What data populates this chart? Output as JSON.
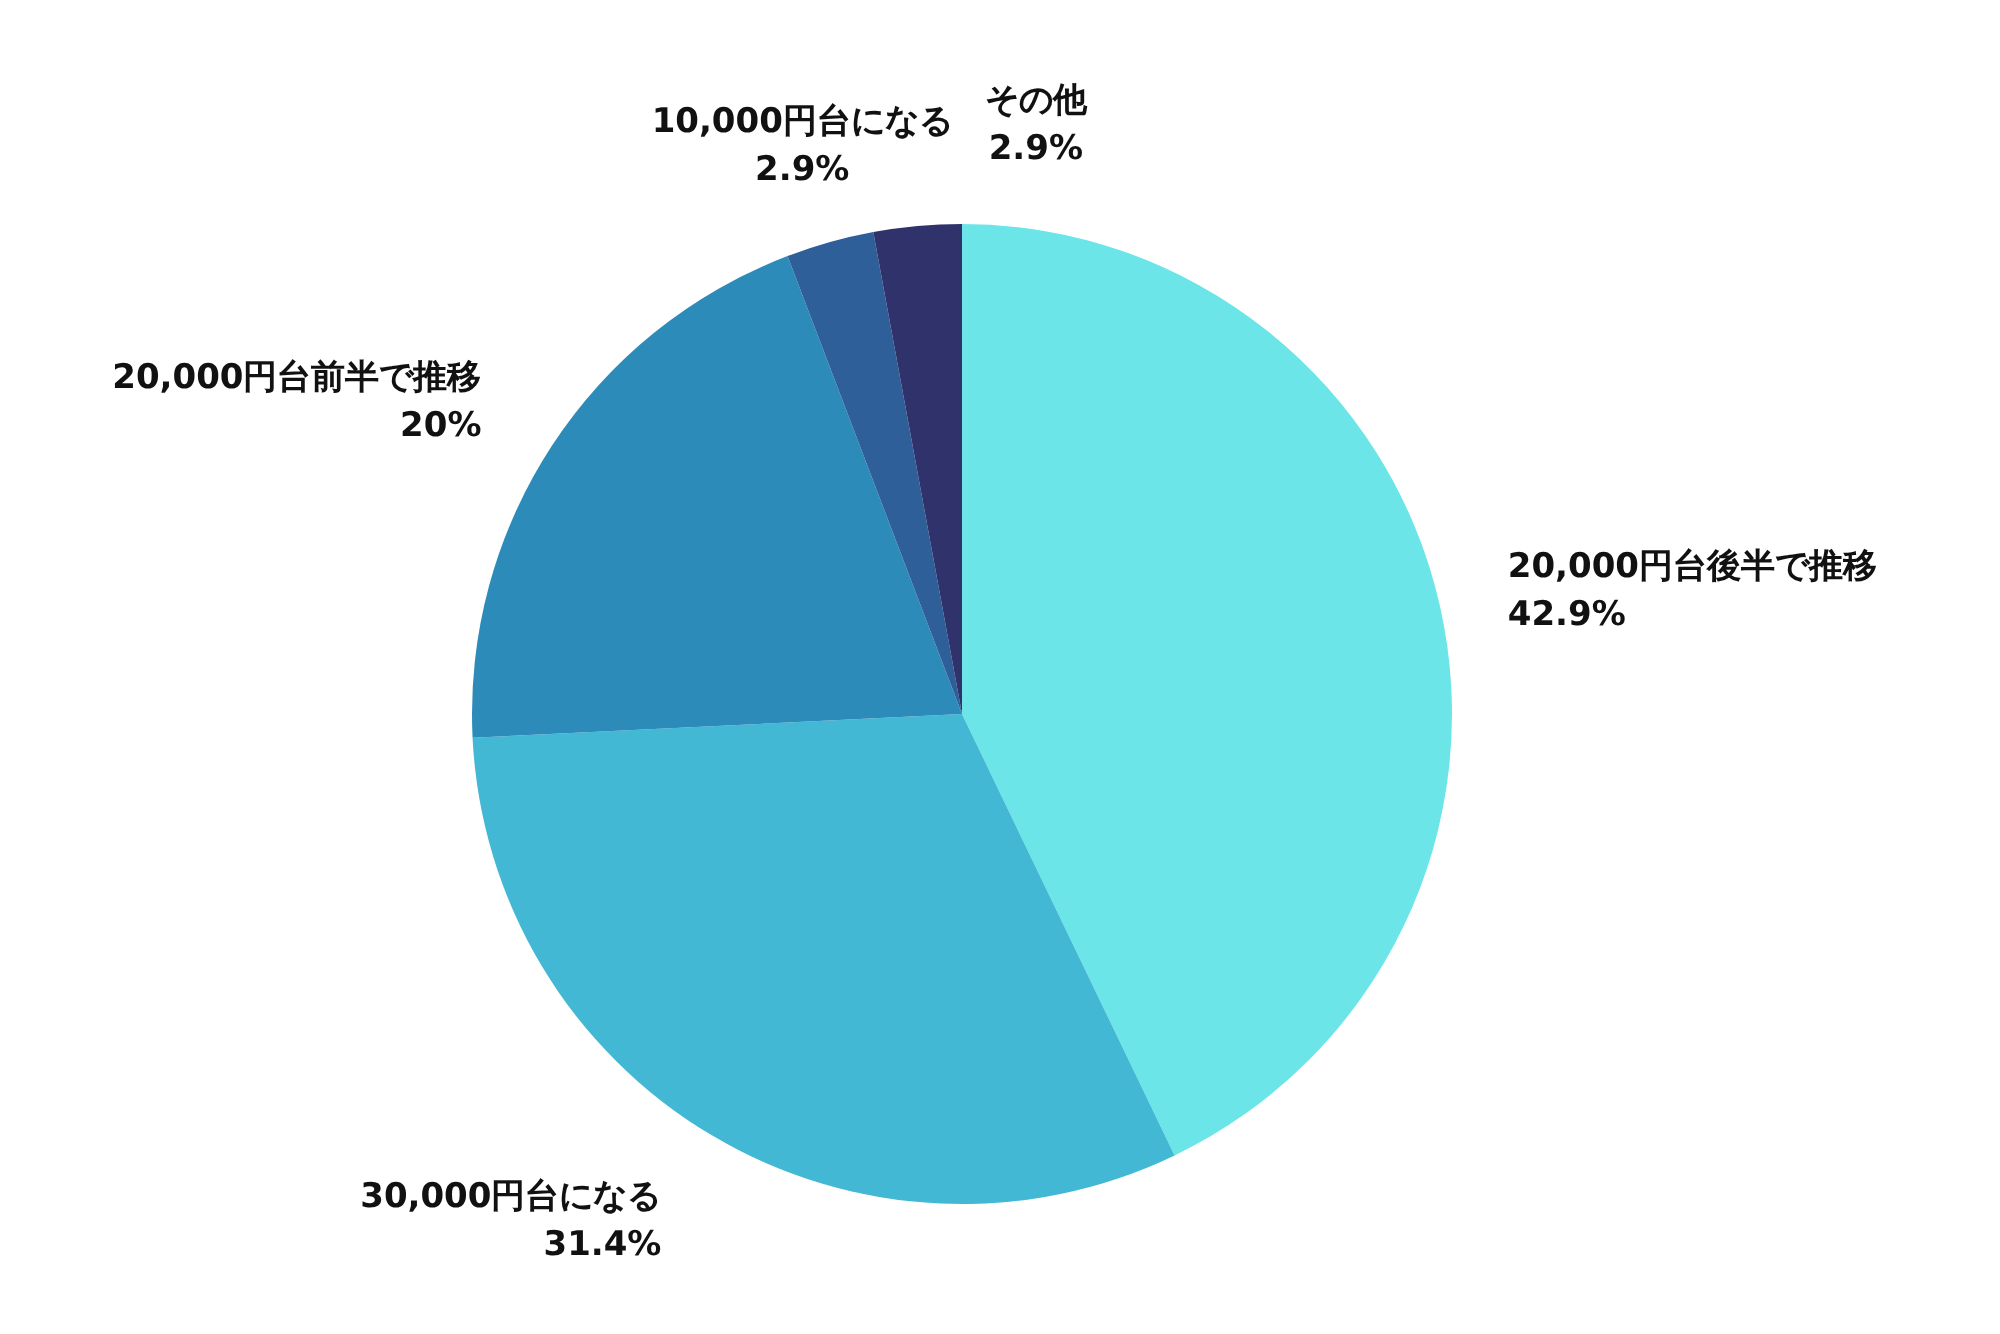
{
  "chart_data": {
    "type": "pie",
    "categories": [
      "20,000円台後半で推移",
      "30,000円台になる",
      "20,000円台前半で推移",
      "10,000円台になる",
      "その他"
    ],
    "values": [
      42.9,
      31.4,
      20,
      2.9,
      2.9
    ],
    "value_labels": [
      "42.9%",
      "31.4%",
      "20%",
      "2.9%",
      "2.9%"
    ],
    "colors": [
      "#6be5e8",
      "#42b8d5",
      "#2d8bba",
      "#2f5f98",
      "#30336b"
    ]
  }
}
